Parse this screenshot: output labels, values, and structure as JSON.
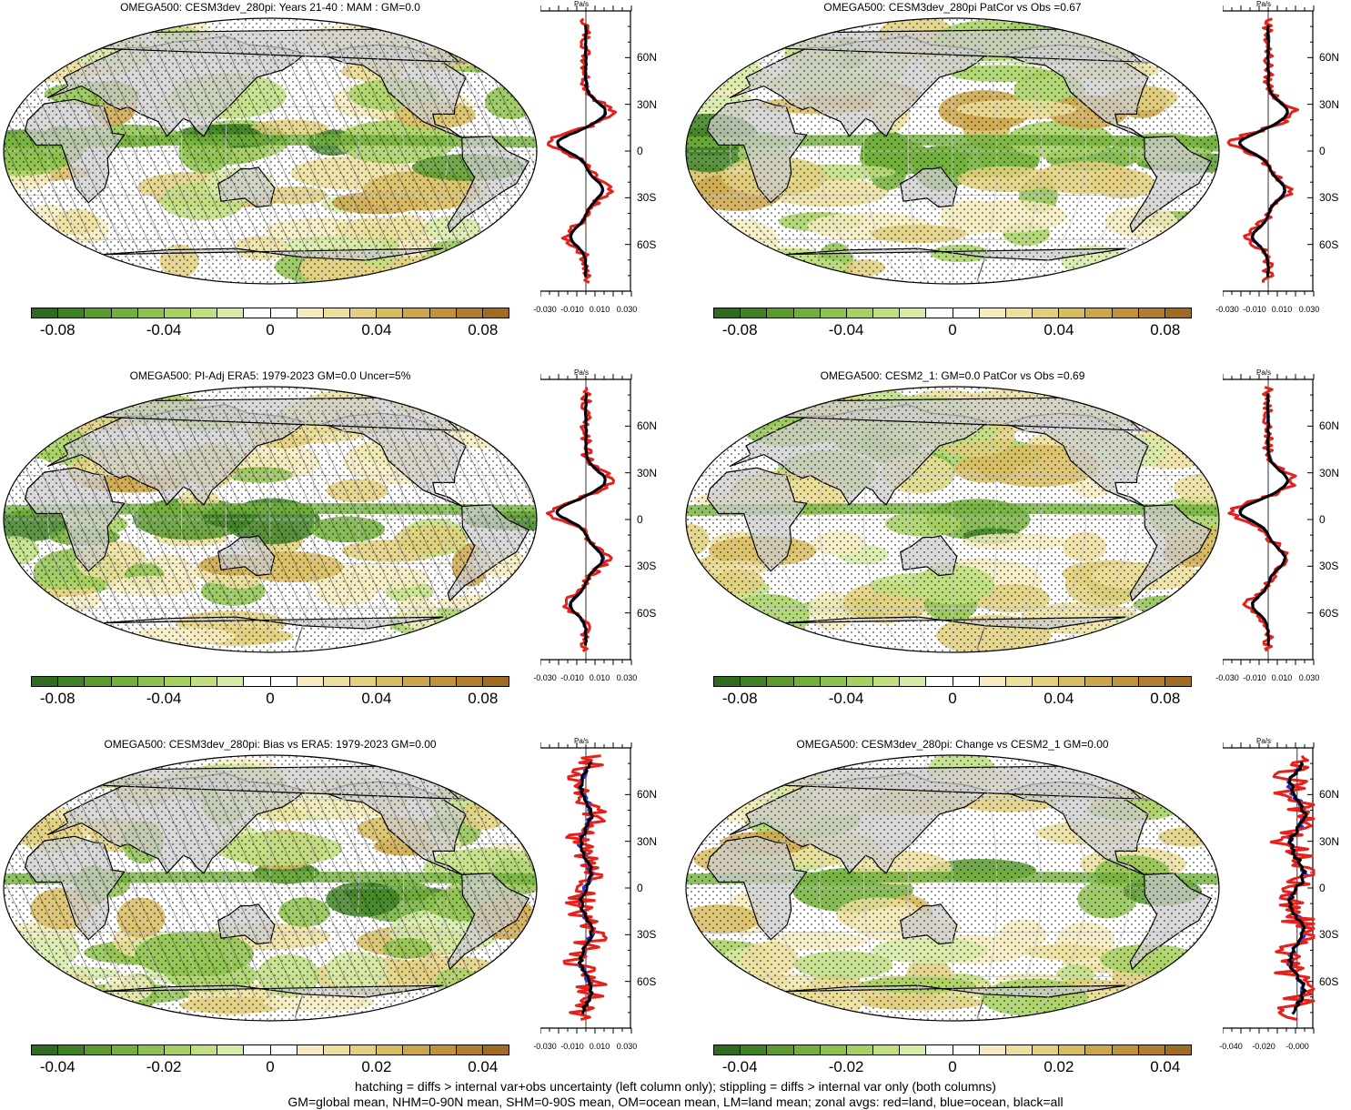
{
  "panels": [
    {
      "title": "OMEGA500: CESM3dev_280pi: Years 21-40 : MAM : GM=0.0",
      "map": {
        "hatched": true,
        "stippled": true
      },
      "colorbar_labels": [
        "-0.08",
        "-0.04",
        "0",
        "0.04",
        "0.08"
      ],
      "colorbar_ticks": [
        -0.08,
        -0.04,
        0,
        0.04,
        0.08
      ],
      "profile": {
        "unit": "Pa/s",
        "x_labels": [
          "-0.030",
          "-0.010",
          "0.010",
          "0.030"
        ],
        "lat_labels": [
          "60N",
          "30N",
          "0",
          "30S",
          "60S"
        ],
        "xmin": -0.035,
        "xmax": 0.035
      }
    },
    {
      "title": "OMEGA500: CESM3dev_280pi PatCor vs Obs =0.67",
      "map": {
        "hatched": false,
        "stippled": true
      },
      "colorbar_labels": [
        "-0.08",
        "-0.04",
        "0",
        "0.04",
        "0.08"
      ],
      "colorbar_ticks": [
        -0.08,
        -0.04,
        0,
        0.04,
        0.08
      ],
      "profile": {
        "unit": "Pa/s",
        "x_labels": [
          "-0.030",
          "-0.010",
          "0.010",
          "0.030"
        ],
        "lat_labels": [
          "60N",
          "30N",
          "0",
          "30S",
          "60S"
        ],
        "xmin": -0.035,
        "xmax": 0.035
      }
    },
    {
      "title": "OMEGA500: PI-Adj ERA5: 1979-2023 GM=0.0 Uncer=5%",
      "map": {
        "hatched": true,
        "stippled": true
      },
      "colorbar_labels": [
        "-0.08",
        "-0.04",
        "0",
        "0.04",
        "0.08"
      ],
      "colorbar_ticks": [
        -0.08,
        -0.04,
        0,
        0.04,
        0.08
      ],
      "profile": {
        "unit": "Pa/s",
        "x_labels": [
          "-0.030",
          "-0.010",
          "0.010",
          "0.030"
        ],
        "lat_labels": [
          "60N",
          "30N",
          "0",
          "30S",
          "60S"
        ],
        "xmin": -0.035,
        "xmax": 0.035
      }
    },
    {
      "title": "OMEGA500: CESM2_1: GM=0.0 PatCor vs Obs =0.69",
      "map": {
        "hatched": false,
        "stippled": true
      },
      "colorbar_labels": [
        "-0.08",
        "-0.04",
        "0",
        "0.04",
        "0.08"
      ],
      "colorbar_ticks": [
        -0.08,
        -0.04,
        0,
        0.04,
        0.08
      ],
      "profile": {
        "unit": "Pa/s",
        "x_labels": [
          "-0.030",
          "-0.010",
          "0.010",
          "0.030"
        ],
        "lat_labels": [
          "60N",
          "30N",
          "0",
          "30S",
          "60S"
        ],
        "xmin": -0.035,
        "xmax": 0.035
      }
    },
    {
      "title": "OMEGA500: CESM3dev_280pi: Bias vs ERA5: 1979-2023 GM=0.00",
      "map": {
        "hatched": true,
        "stippled": true
      },
      "colorbar_labels": [
        "-0.04",
        "-0.02",
        "0",
        "0.02",
        "0.04"
      ],
      "colorbar_ticks": [
        -0.04,
        -0.02,
        0,
        0.02,
        0.04
      ],
      "profile": {
        "unit": "Pa/s",
        "x_labels": [
          "-0.030",
          "-0.010",
          "0.010",
          "0.030"
        ],
        "lat_labels": [
          "60N",
          "30N",
          "0",
          "30S",
          "60S"
        ],
        "xmin": -0.035,
        "xmax": 0.035
      }
    },
    {
      "title": "OMEGA500: CESM3dev_280pi: Change vs CESM2_1 GM=0.00",
      "map": {
        "hatched": false,
        "stippled": true
      },
      "colorbar_labels": [
        "-0.04",
        "-0.02",
        "0",
        "0.02",
        "0.04"
      ],
      "colorbar_ticks": [
        -0.04,
        -0.02,
        0,
        0.02,
        0.04
      ],
      "profile": {
        "unit": "Pa/s",
        "x_labels": [
          "-0.040",
          "-0.020",
          "-0.000"
        ],
        "lat_labels": [
          "60N",
          "30N",
          "0",
          "30S",
          "60S"
        ],
        "xmin": -0.045,
        "xmax": 0.01
      }
    }
  ],
  "colorbar_colors": [
    "#2f6b1e",
    "#3f8226",
    "#5a9a2f",
    "#72b03c",
    "#8ec24e",
    "#a6d160",
    "#bfdf80",
    "#d6eba6",
    "#ffffff",
    "#ffffff",
    "#f4ecc0",
    "#ece09e",
    "#e2d07e",
    "#d8bd60",
    "#cca64a",
    "#c0923a",
    "#b07e2e",
    "#a06c24"
  ],
  "footer": [
    "hatching = diffs > internal var+obs uncertainty (left column only); stippling = diffs > internal var only (both columns)",
    "GM=global mean, NHM=0-90N mean, SHM=0-90S mean, OM=ocean mean, LM=land mean; zonal avgs: red=land, blue=ocean, black=all"
  ],
  "colors": {
    "land_line": "#e8201a",
    "ocean_line": "#2030e0",
    "all_line": "#000000",
    "land_fill": "#cccccc"
  }
}
